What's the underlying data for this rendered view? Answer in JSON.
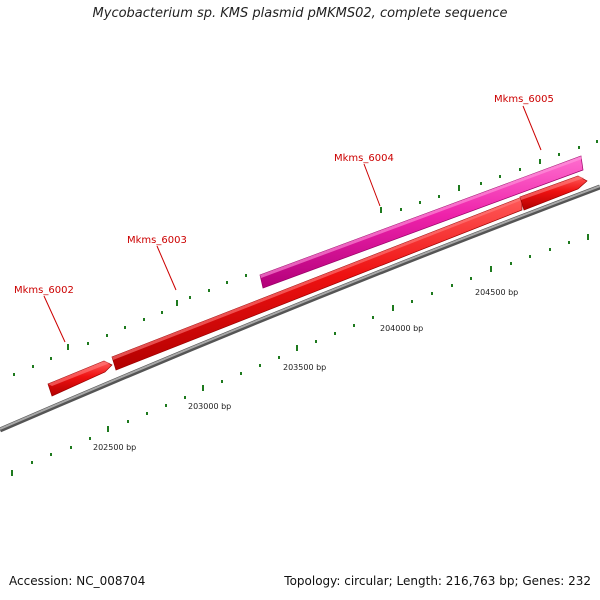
{
  "title": "Mycobacterium sp. KMS plasmid pMKMS02, complete sequence",
  "footer": {
    "accession": "Accession: NC_008704",
    "summary": "Topology: circular; Length: 216,763 bp; Genes: 232"
  },
  "colors": {
    "backbone": "#8a8a8a",
    "tick": "#1e7a1e",
    "gene_red": "#ee1111",
    "gene_pink": "#ee22aa",
    "label": "#cc0000"
  },
  "genes": [
    {
      "name": "Mkms_6002",
      "color": "red"
    },
    {
      "name": "Mkms_6003",
      "color": "red"
    },
    {
      "name": "Mkms_6004",
      "color": "pink"
    },
    {
      "name": "Mkms_6005",
      "color": "red"
    }
  ],
  "scale_labels": [
    "202500 bp",
    "203000 bp",
    "203500 bp",
    "204000 bp",
    "204500 bp"
  ]
}
